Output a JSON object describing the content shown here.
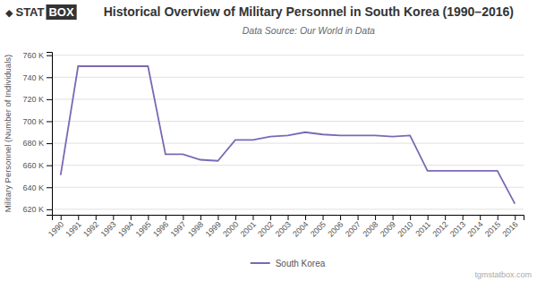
{
  "chart_data": {
    "type": "line",
    "title": "Historical Overview of Military Personnel in South Korea (1990–2016)",
    "subtitle": "Data Source: Our World in Data",
    "ylabel": "Military Personnel (Number of Individuals)",
    "annotations": [
      "◆",
      "STAT",
      "BOX",
      "tgmstatbox.com"
    ],
    "x": [
      1990,
      1991,
      1992,
      1993,
      1994,
      1995,
      1996,
      1997,
      1998,
      1999,
      2000,
      2001,
      2002,
      2003,
      2004,
      2005,
      2006,
      2007,
      2008,
      2009,
      2010,
      2011,
      2012,
      2013,
      2014,
      2015,
      2016
    ],
    "series": [
      {
        "name": "South Korea",
        "color": "#7B68B5",
        "values": [
          651000,
          750000,
          750000,
          750000,
          750000,
          750000,
          670000,
          670000,
          665000,
          664000,
          683000,
          683000,
          686000,
          687000,
          690000,
          688000,
          687000,
          687000,
          687000,
          686000,
          687000,
          655000,
          655000,
          655000,
          655000,
          655000,
          625000
        ]
      }
    ],
    "xlim": [
      1989.5,
      2016.5
    ],
    "xticks": [
      1990,
      1991,
      1992,
      1993,
      1994,
      1995,
      1996,
      1997,
      1998,
      1999,
      2000,
      2001,
      2002,
      2003,
      2004,
      2005,
      2006,
      2007,
      2008,
      2009,
      2010,
      2011,
      2012,
      2013,
      2014,
      2015,
      2016
    ],
    "ylim": [
      615000,
      763000
    ],
    "yticks": [
      {
        "value": 620000,
        "label": "620 K"
      },
      {
        "value": 640000,
        "label": "640 K"
      },
      {
        "value": 660000,
        "label": "660 K"
      },
      {
        "value": 680000,
        "label": "680 K"
      },
      {
        "value": 700000,
        "label": "700 K"
      },
      {
        "value": 720000,
        "label": "720 K"
      },
      {
        "value": 740000,
        "label": "740 K"
      },
      {
        "value": 760000,
        "label": "760 K"
      }
    ],
    "grid": true,
    "legend": "bottom"
  }
}
